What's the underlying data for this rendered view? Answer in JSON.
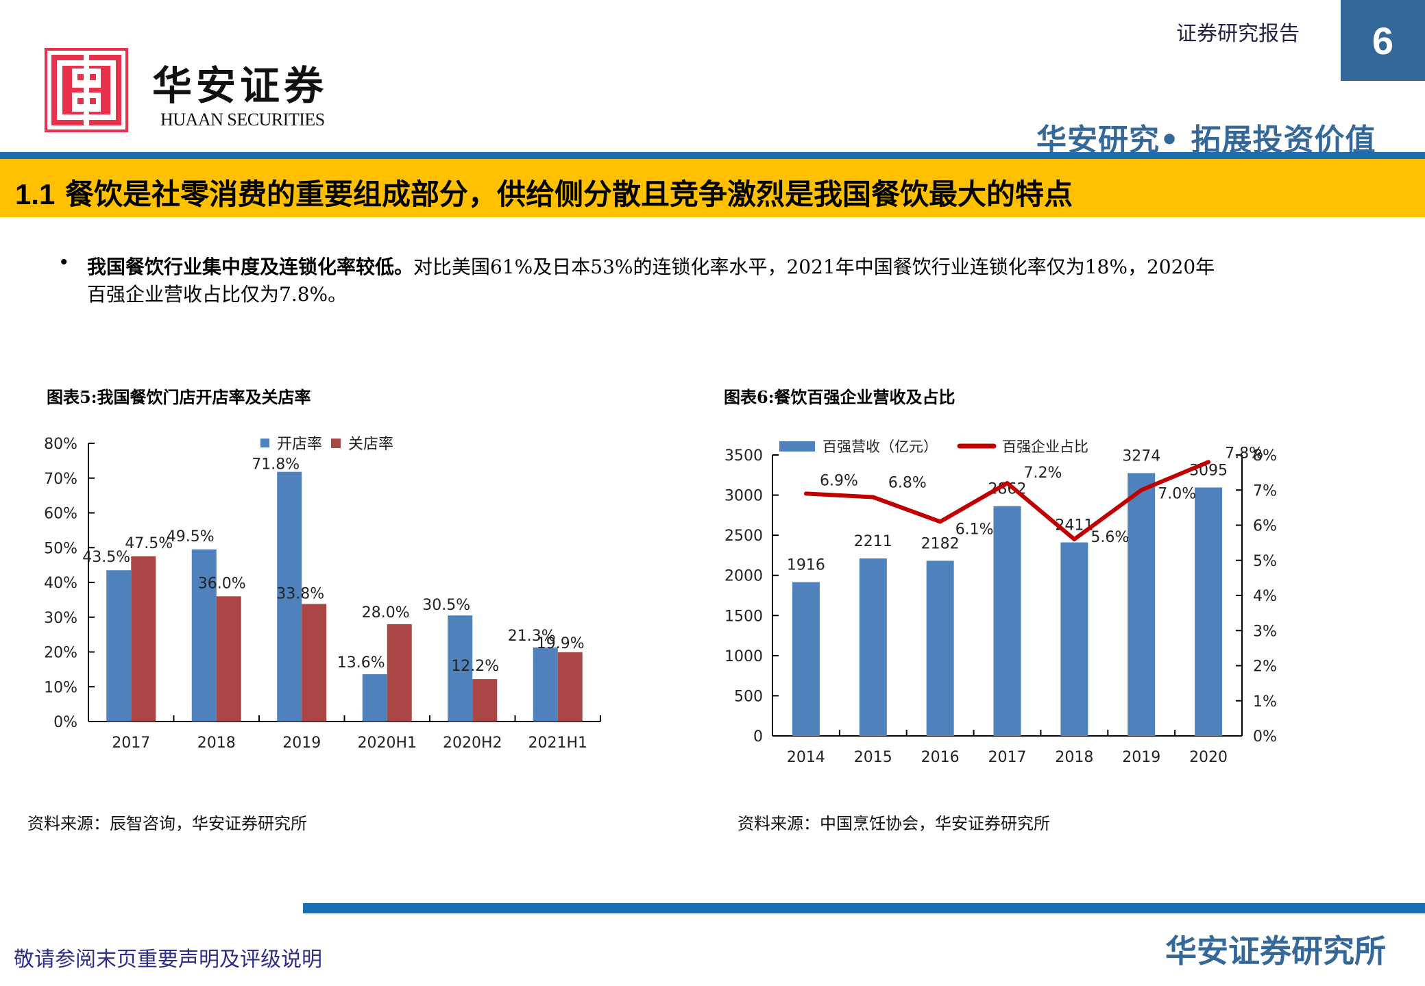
{
  "header": {
    "logo_cn": "华安证券",
    "logo_en": "HUAAN SECURITIES",
    "report_type": "证券研究报告",
    "page_number": "6",
    "slogan": "华安研究• 拓展投资价值"
  },
  "section": {
    "number": "1.1",
    "title": "餐饮是社零消费的重要组成部分，供给侧分散且竞争激烈是我国餐饮最大的特点"
  },
  "body": {
    "bullet": "•",
    "bold_lead": "我国餐饮行业集中度及连锁化率较低。",
    "line1_rest": "对比美国61%及日本53%的连锁化率水平，2021年中国餐饮行业连锁化率仅为18%，2020年",
    "line2": "百强企业营收占比仅为7.8%。"
  },
  "figures": {
    "fig5": {
      "title": "图表5:我国餐饮门店开店率及关店率",
      "source": "资料来源：辰智咨询，华安证券研究所"
    },
    "fig6": {
      "title": "图表6:餐饮百强企业营收及占比",
      "source": "资料来源：中国烹饪协会，华安证券研究所"
    }
  },
  "footer": {
    "disclaimer": "敬请参阅末页重要声明及评级说明",
    "brand": "华安证券研究所"
  },
  "colors": {
    "brand_blue": "#346899",
    "stripe_blue": "#1A6FB4",
    "stripe_yellow": "#FFC000",
    "logo_red": "#E8314A",
    "bar_blue": "#4F81BD",
    "bar_red": "#AA4643",
    "line_red": "#C00000"
  },
  "chart_data": [
    {
      "type": "bar",
      "title": "图表5:我国餐饮门店开店率及关店率",
      "categories": [
        "2017",
        "2018",
        "2019",
        "2020H1",
        "2020H2",
        "2021H1"
      ],
      "series": [
        {
          "name": "开店率",
          "values": [
            43.5,
            49.5,
            71.8,
            13.6,
            30.5,
            21.3
          ],
          "labels": [
            "43.5%",
            "49.5%",
            "71.8%",
            "13.6%",
            "30.5%",
            "21.3%"
          ]
        },
        {
          "name": "关店率",
          "values": [
            47.5,
            36.0,
            33.8,
            28.0,
            12.2,
            19.9
          ],
          "labels": [
            "47.5%",
            "36.0%",
            "33.8%",
            "28.0%",
            "12.2%",
            "19.9%"
          ]
        }
      ],
      "xlabel": "",
      "ylabel": "",
      "ylim": [
        0,
        80
      ],
      "yticks": [
        "0%",
        "10%",
        "20%",
        "30%",
        "40%",
        "50%",
        "60%",
        "70%",
        "80%"
      ],
      "grid": false,
      "legend_position": "top-right"
    },
    {
      "type": "bar+line",
      "title": "图表6:餐饮百强企业营收及占比",
      "categories": [
        "2014",
        "2015",
        "2016",
        "2017",
        "2018",
        "2019",
        "2020"
      ],
      "series": [
        {
          "name": "百强营收（亿元）",
          "type": "bar",
          "axis": "left",
          "values": [
            1916,
            2211,
            2182,
            2862,
            2411,
            3274,
            3095
          ]
        },
        {
          "name": "百强企业占比",
          "type": "line",
          "axis": "right",
          "values": [
            6.9,
            6.8,
            6.1,
            7.2,
            5.6,
            7.0,
            7.8
          ],
          "labels": [
            "6.9%",
            "6.8%",
            "6.1%",
            "7.2%",
            "5.6%",
            "7.0%",
            "7.8%"
          ]
        }
      ],
      "ylim_left": [
        0,
        3500
      ],
      "yticks_left": [
        "0",
        "500",
        "1000",
        "1500",
        "2000",
        "2500",
        "3000",
        "3500"
      ],
      "ylim_right": [
        0,
        8
      ],
      "yticks_right": [
        "0%",
        "1%",
        "2%",
        "3%",
        "4%",
        "5%",
        "6%",
        "7%",
        "8%"
      ],
      "grid": false,
      "legend_position": "top"
    }
  ]
}
